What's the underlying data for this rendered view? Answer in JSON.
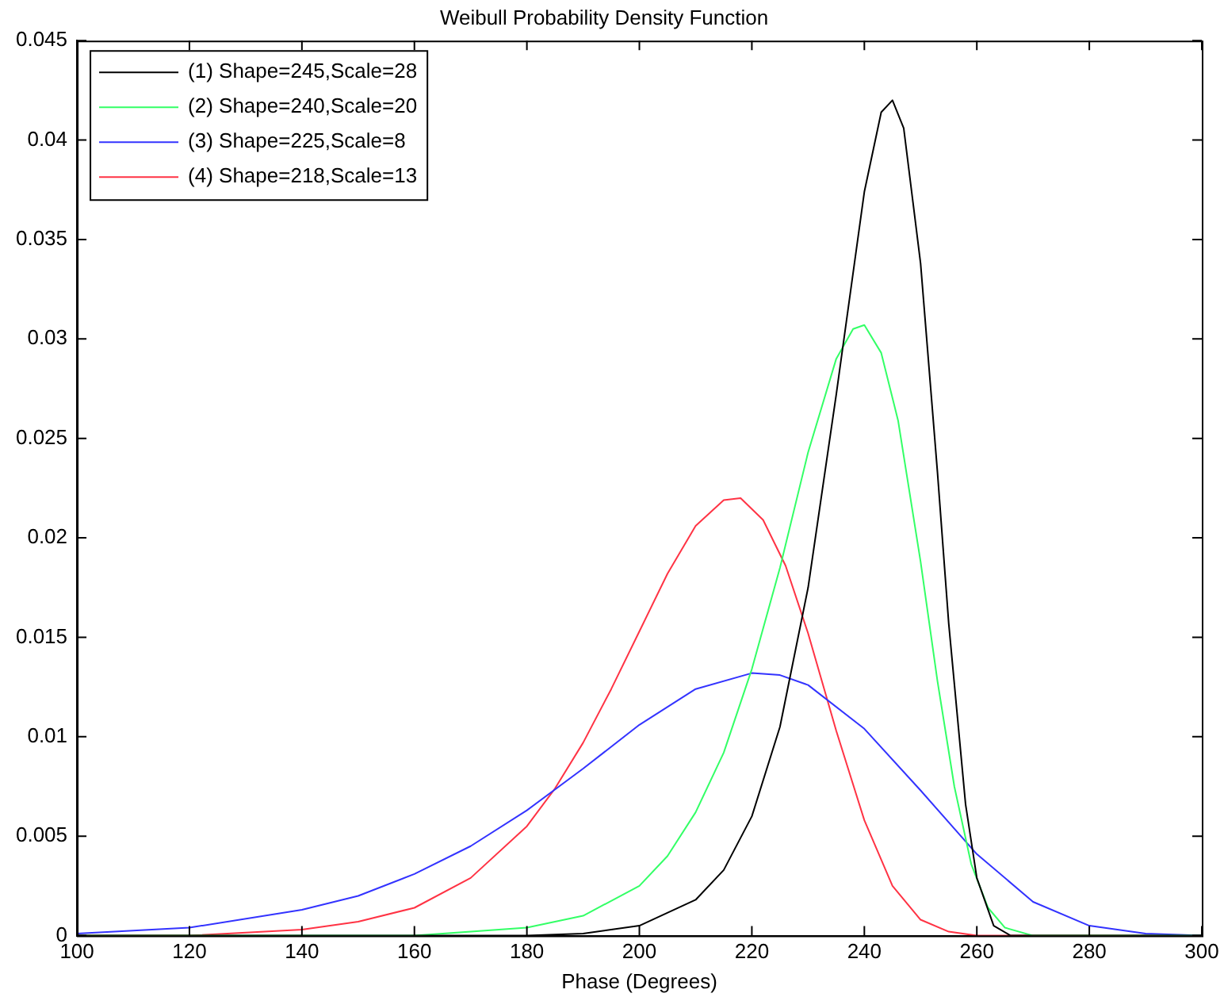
{
  "chart_data": {
    "type": "line",
    "title": "Weibull Probability Density Function",
    "xlabel": "Phase (Degrees)",
    "xlim": [
      100,
      300
    ],
    "xticks": [
      100,
      120,
      140,
      160,
      180,
      200,
      220,
      240,
      260,
      280,
      300
    ],
    "ylim": [
      0,
      0.045
    ],
    "yticks": [
      0,
      0.005,
      0.01,
      0.015,
      0.02,
      0.025,
      0.03,
      0.035,
      0.04,
      0.045
    ],
    "grid": false,
    "legend": "top left",
    "series": [
      {
        "name": "(1) Shape=245,Scale=28",
        "color": "#000000",
        "x": [
          100,
          170,
          180,
          190,
          200,
          210,
          215,
          220,
          225,
          230,
          235,
          240,
          243,
          245,
          247,
          250,
          253,
          255,
          258,
          260,
          263,
          266,
          270,
          300
        ],
        "values": [
          0,
          0,
          0,
          0.0001,
          0.0005,
          0.0018,
          0.0033,
          0.006,
          0.0105,
          0.0175,
          0.0272,
          0.0374,
          0.0414,
          0.042,
          0.0406,
          0.0338,
          0.0233,
          0.0157,
          0.0066,
          0.0029,
          0.0005,
          0,
          0,
          0
        ]
      },
      {
        "name": "(2) Shape=240,Scale=20",
        "color": "#33ff66",
        "x": [
          100,
          140,
          160,
          180,
          190,
          200,
          205,
          210,
          215,
          220,
          225,
          230,
          235,
          238,
          240,
          243,
          246,
          250,
          253,
          256,
          259,
          262,
          265,
          270,
          300
        ],
        "values": [
          0,
          0,
          0,
          0.0004,
          0.001,
          0.0025,
          0.004,
          0.0062,
          0.0092,
          0.0134,
          0.0185,
          0.0243,
          0.029,
          0.0305,
          0.0307,
          0.0293,
          0.0259,
          0.0188,
          0.0128,
          0.0075,
          0.0036,
          0.0014,
          0.0004,
          0,
          0
        ]
      },
      {
        "name": "(3) Shape=225,Scale=8",
        "color": "#3333ff",
        "x": [
          100,
          120,
          140,
          150,
          160,
          170,
          180,
          190,
          200,
          210,
          220,
          225,
          230,
          240,
          250,
          260,
          270,
          280,
          290,
          300
        ],
        "values": [
          0.0001,
          0.0004,
          0.0013,
          0.002,
          0.0031,
          0.0045,
          0.0063,
          0.0084,
          0.0106,
          0.0124,
          0.0132,
          0.0131,
          0.0126,
          0.0104,
          0.0073,
          0.0041,
          0.0017,
          0.0005,
          0.0001,
          0
        ]
      },
      {
        "name": "(4) Shape=218,Scale=13",
        "color": "#ff3344",
        "x": [
          100,
          120,
          140,
          150,
          160,
          170,
          180,
          185,
          190,
          195,
          200,
          205,
          210,
          215,
          218,
          222,
          226,
          230,
          235,
          240,
          245,
          250,
          255,
          260,
          300
        ],
        "values": [
          0,
          0,
          0.0003,
          0.0007,
          0.0014,
          0.0029,
          0.0055,
          0.0074,
          0.0097,
          0.0124,
          0.0153,
          0.0182,
          0.0206,
          0.0219,
          0.022,
          0.0209,
          0.0186,
          0.0152,
          0.0103,
          0.0058,
          0.0025,
          0.0008,
          0.0002,
          0,
          0
        ]
      }
    ]
  }
}
